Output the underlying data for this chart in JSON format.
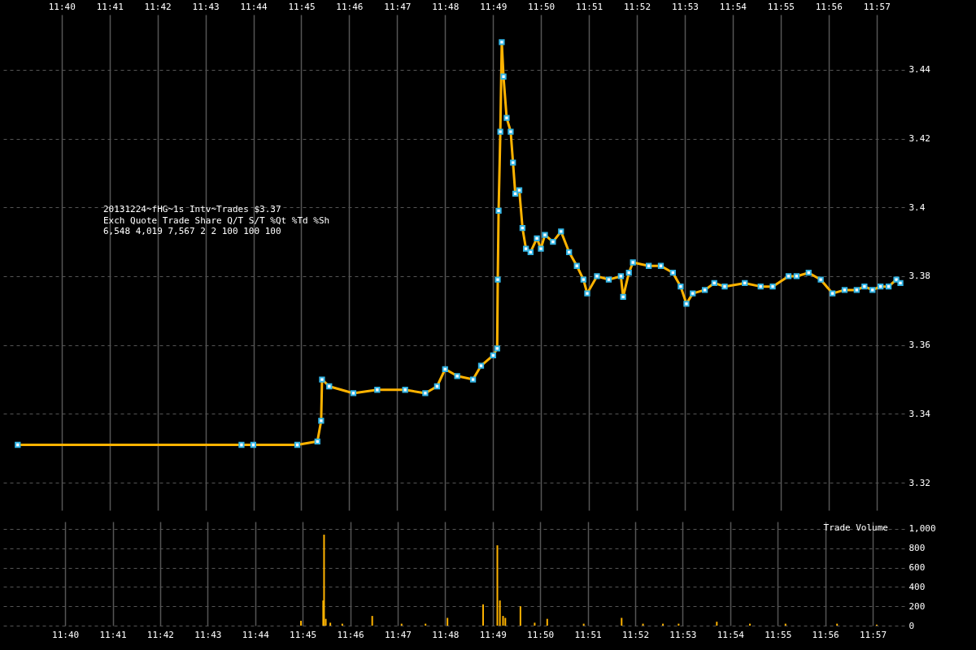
{
  "chart_data": [
    {
      "type": "line",
      "title": "20131224~fHG~1s Intv~Trades $3.37",
      "annotations": [
        "Exch Quote Trade Share Q/T S/T %Qt %Td %Sh",
        "6,548 4,019 7,567 2 2 100 100 100"
      ],
      "x": [
        11.6514,
        11.7292,
        11.7333,
        11.7486,
        11.7556,
        11.7569,
        11.7572,
        11.7597,
        11.7681,
        11.7764,
        11.7861,
        11.7931,
        11.7972,
        11.8,
        11.8042,
        11.8097,
        11.8125,
        11.8167,
        11.8181,
        11.8183,
        11.8186,
        11.8192,
        11.8197,
        11.8203,
        11.8214,
        11.8228,
        11.8236,
        11.8244,
        11.8258,
        11.8269,
        11.8281,
        11.8297,
        11.8319,
        11.8333,
        11.8347,
        11.8375,
        11.8403,
        11.8431,
        11.8458,
        11.8481,
        11.8494,
        11.8528,
        11.8569,
        11.8611,
        11.8619,
        11.8639,
        11.8653,
        11.8708,
        11.875,
        11.8792,
        11.8819,
        11.8839,
        11.8861,
        11.8903,
        11.8936,
        11.8972,
        11.9042,
        11.9097,
        11.9139,
        11.9194,
        11.9222,
        11.9264,
        11.9306,
        11.9347,
        11.9389,
        11.9431,
        11.9458,
        11.9486,
        11.9514,
        11.9542,
        11.9569,
        11.9583
      ],
      "series": [
        {
          "type": "line",
          "color": "#ffb300",
          "values": [
            3.331,
            3.331,
            3.331,
            3.331,
            3.332,
            3.338,
            3.35,
            3.348,
            3.346,
            3.347,
            3.347,
            3.346,
            3.348,
            3.353,
            3.351,
            3.35,
            3.354,
            3.357,
            3.359,
            3.379,
            3.399,
            3.422,
            3.448,
            3.438,
            3.426,
            3.422,
            3.413,
            3.404,
            3.405,
            3.394,
            3.388,
            3.387,
            3.391,
            3.388,
            3.392,
            3.39,
            3.393,
            3.387,
            3.383,
            3.379,
            3.375,
            3.38,
            3.379,
            3.38,
            3.374,
            3.381,
            3.384,
            3.383,
            3.383,
            3.381,
            3.377,
            3.372,
            3.375,
            3.376,
            3.378,
            3.377,
            3.378,
            3.377,
            3.377,
            3.38,
            3.38,
            3.381,
            3.379,
            3.375,
            3.376,
            3.376,
            3.377,
            3.376,
            3.377,
            3.377,
            3.379,
            3.378
          ]
        },
        {
          "type": "scatter",
          "color": "#33b5e5",
          "marker": "square",
          "values": [
            3.331,
            3.331,
            3.331,
            3.331,
            3.332,
            3.338,
            3.35,
            3.348,
            3.346,
            3.347,
            3.347,
            3.346,
            3.348,
            3.353,
            3.351,
            3.35,
            3.354,
            3.357,
            3.359,
            3.379,
            3.399,
            3.422,
            3.448,
            3.438,
            3.426,
            3.422,
            3.413,
            3.404,
            3.405,
            3.394,
            3.388,
            3.387,
            3.391,
            3.388,
            3.392,
            3.39,
            3.393,
            3.387,
            3.383,
            3.379,
            3.375,
            3.38,
            3.379,
            3.38,
            3.374,
            3.381,
            3.384,
            3.383,
            3.383,
            3.381,
            3.377,
            3.372,
            3.375,
            3.376,
            3.378,
            3.377,
            3.378,
            3.377,
            3.377,
            3.38,
            3.38,
            3.381,
            3.379,
            3.375,
            3.376,
            3.376,
            3.377,
            3.376,
            3.377,
            3.377,
            3.379,
            3.378
          ]
        }
      ],
      "xlim": [
        11.6458,
        11.9597
      ],
      "xticks": [
        {
          "value": 11.66667,
          "label": "11:40"
        },
        {
          "value": 11.68333,
          "label": "11:41"
        },
        {
          "value": 11.7,
          "label": "11:42"
        },
        {
          "value": 11.71667,
          "label": "11:43"
        },
        {
          "value": 11.73333,
          "label": "11:44"
        },
        {
          "value": 11.75,
          "label": "11:45"
        },
        {
          "value": 11.76667,
          "label": "11:46"
        },
        {
          "value": 11.78333,
          "label": "11:47"
        },
        {
          "value": 11.8,
          "label": "11:48"
        },
        {
          "value": 11.81667,
          "label": "11:49"
        },
        {
          "value": 11.83333,
          "label": "11:50"
        },
        {
          "value": 11.85,
          "label": "11:51"
        },
        {
          "value": 11.86667,
          "label": "11:52"
        },
        {
          "value": 11.88333,
          "label": "11:53"
        },
        {
          "value": 11.9,
          "label": "11:54"
        },
        {
          "value": 11.91667,
          "label": "11:55"
        },
        {
          "value": 11.93333,
          "label": "11:56"
        },
        {
          "value": 11.95,
          "label": "11:57"
        }
      ],
      "ylim": [
        3.312,
        3.456
      ],
      "yticks": [
        3.32,
        3.34,
        3.36,
        3.38,
        3.4,
        3.42,
        3.44
      ],
      "grid": true
    },
    {
      "type": "bar",
      "title": "Trade Volume",
      "color": "#ffb300",
      "x": [
        11.7494,
        11.7572,
        11.7575,
        11.7581,
        11.7597,
        11.7639,
        11.7744,
        11.7847,
        11.7931,
        11.8008,
        11.8133,
        11.8183,
        11.8192,
        11.8203,
        11.8211,
        11.8264,
        11.8314,
        11.8358,
        11.8486,
        11.8619,
        11.8694,
        11.8764,
        11.8819,
        11.8953,
        11.9069,
        11.9194,
        11.9375,
        11.9514
      ],
      "values": [
        50,
        260,
        940,
        70,
        30,
        20,
        100,
        20,
        20,
        80,
        220,
        830,
        260,
        100,
        80,
        200,
        30,
        70,
        20,
        80,
        20,
        20,
        20,
        40,
        20,
        20,
        20,
        10
      ],
      "xlim": [
        11.6458,
        11.9597
      ],
      "xticks": [
        {
          "value": 11.66667,
          "label": "11:40"
        },
        {
          "value": 11.68333,
          "label": "11:41"
        },
        {
          "value": 11.7,
          "label": "11:42"
        },
        {
          "value": 11.71667,
          "label": "11:43"
        },
        {
          "value": 11.73333,
          "label": "11:44"
        },
        {
          "value": 11.75,
          "label": "11:45"
        },
        {
          "value": 11.76667,
          "label": "11:46"
        },
        {
          "value": 11.78333,
          "label": "11:47"
        },
        {
          "value": 11.8,
          "label": "11:48"
        },
        {
          "value": 11.81667,
          "label": "11:49"
        },
        {
          "value": 11.83333,
          "label": "11:50"
        },
        {
          "value": 11.85,
          "label": "11:51"
        },
        {
          "value": 11.86667,
          "label": "11:52"
        },
        {
          "value": 11.88333,
          "label": "11:53"
        },
        {
          "value": 11.9,
          "label": "11:54"
        },
        {
          "value": 11.91667,
          "label": "11:55"
        },
        {
          "value": 11.93333,
          "label": "11:56"
        },
        {
          "value": 11.95,
          "label": "11:57"
        }
      ],
      "ylim": [
        0,
        1075
      ],
      "yticks": [
        0,
        200,
        400,
        600,
        800,
        {
          "value": 1000,
          "label": "1,000"
        }
      ],
      "grid": true
    }
  ]
}
